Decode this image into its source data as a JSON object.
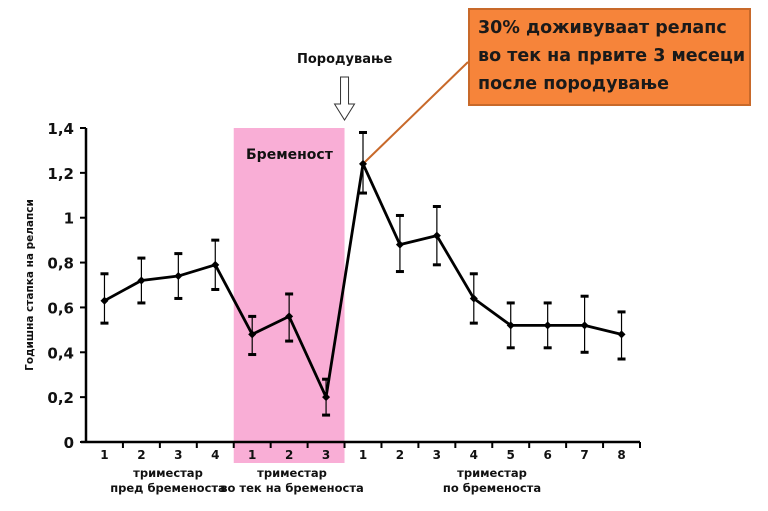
{
  "chart_data": {
    "type": "line",
    "ylabel": "Годишна стапка на релапси",
    "ylim": [
      0,
      1.4
    ],
    "yticks": [
      0,
      0.2,
      0.4,
      0.6,
      0.8,
      1,
      1.2,
      1.4
    ],
    "ytick_labels": [
      "0",
      "0,2",
      "0,4",
      "0,6",
      "0,8",
      "1",
      "1,2",
      "1,4"
    ],
    "grid": false,
    "categories": [
      "1",
      "2",
      "3",
      "4",
      "1",
      "2",
      "3",
      "1",
      "2",
      "3",
      "4",
      "5",
      "6",
      "7",
      "8"
    ],
    "groups": [
      {
        "label_line1": "триместар",
        "label_line2": "пред бременоста",
        "count": 4
      },
      {
        "label_line1": "триместар",
        "label_line2": "во тек на бременоста",
        "count": 3
      },
      {
        "label_line1": "триместар",
        "label_line2": "по бременоста",
        "count": 8
      }
    ],
    "series": [
      {
        "name": "Годишна стапка на релапси",
        "values": [
          0.63,
          0.72,
          0.74,
          0.79,
          0.48,
          0.56,
          0.2,
          1.24,
          0.88,
          0.92,
          0.64,
          0.52,
          0.52,
          0.52,
          0.48
        ],
        "err_upper": [
          0.75,
          0.82,
          0.84,
          0.9,
          0.56,
          0.66,
          0.28,
          1.38,
          1.01,
          1.05,
          0.75,
          0.62,
          0.62,
          0.65,
          0.58
        ],
        "err_lower": [
          0.53,
          0.62,
          0.64,
          0.68,
          0.39,
          0.45,
          0.12,
          1.11,
          0.76,
          0.79,
          0.53,
          0.42,
          0.42,
          0.4,
          0.37
        ],
        "color": "#000000"
      }
    ],
    "shaded_region": {
      "label": "Бременост",
      "from_category_index": 4,
      "to_category_index": 6,
      "color": "#F9AED6"
    },
    "annotations": [
      {
        "type": "arrow",
        "text": "Породување",
        "between_category_index": [
          6,
          7
        ]
      },
      {
        "type": "callout",
        "lines": [
          "30% доживуваат релапс",
          "во тек на првите 3 месеци",
          "после породување"
        ],
        "target_category_index": 7,
        "color": "#F6843A",
        "line_color": "#C8692A"
      }
    ]
  }
}
